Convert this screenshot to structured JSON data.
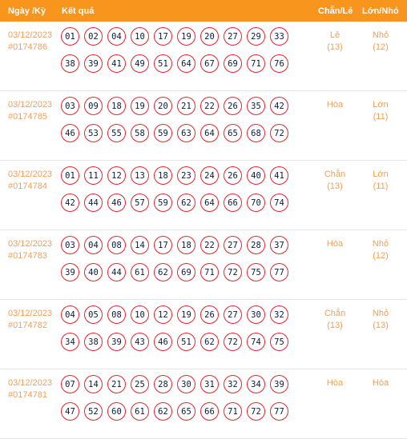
{
  "header": {
    "date": "Ngày /Kỳ",
    "result": "Kết quả",
    "parity": "Chẵn/Lẻ",
    "size": "Lớn/Nhỏ"
  },
  "rows": [
    {
      "date": "03/12/2023",
      "id": "#0174786",
      "numbers": [
        "01",
        "02",
        "04",
        "10",
        "17",
        "19",
        "20",
        "27",
        "29",
        "33",
        "38",
        "39",
        "41",
        "49",
        "51",
        "64",
        "67",
        "69",
        "71",
        "76"
      ],
      "parity": "Lẻ",
      "parity_count": "(13)",
      "size": "Nhỏ",
      "size_count": "(12)"
    },
    {
      "date": "03/12/2023",
      "id": "#0174785",
      "numbers": [
        "03",
        "09",
        "18",
        "19",
        "20",
        "21",
        "22",
        "26",
        "35",
        "42",
        "46",
        "53",
        "55",
        "58",
        "59",
        "63",
        "64",
        "65",
        "68",
        "72"
      ],
      "parity": "Hòa",
      "parity_count": "",
      "size": "Lớn",
      "size_count": "(11)"
    },
    {
      "date": "03/12/2023",
      "id": "#0174784",
      "numbers": [
        "01",
        "11",
        "12",
        "13",
        "18",
        "23",
        "24",
        "26",
        "40",
        "41",
        "42",
        "44",
        "46",
        "57",
        "59",
        "62",
        "64",
        "66",
        "70",
        "74"
      ],
      "parity": "Chẵn",
      "parity_count": "(13)",
      "size": "Lớn",
      "size_count": "(11)"
    },
    {
      "date": "03/12/2023",
      "id": "#0174783",
      "numbers": [
        "03",
        "04",
        "08",
        "14",
        "17",
        "18",
        "22",
        "27",
        "28",
        "37",
        "39",
        "40",
        "44",
        "61",
        "62",
        "69",
        "71",
        "72",
        "75",
        "77"
      ],
      "parity": "Hòa",
      "parity_count": "",
      "size": "Nhỏ",
      "size_count": "(12)"
    },
    {
      "date": "03/12/2023",
      "id": "#0174782",
      "numbers": [
        "04",
        "05",
        "08",
        "10",
        "12",
        "19",
        "26",
        "27",
        "30",
        "32",
        "34",
        "38",
        "39",
        "43",
        "46",
        "51",
        "62",
        "72",
        "74",
        "75"
      ],
      "parity": "Chẵn",
      "parity_count": "(13)",
      "size": "Nhỏ",
      "size_count": "(13)"
    },
    {
      "date": "03/12/2023",
      "id": "#0174781",
      "numbers": [
        "07",
        "14",
        "21",
        "25",
        "28",
        "30",
        "31",
        "32",
        "34",
        "39",
        "47",
        "52",
        "60",
        "61",
        "62",
        "65",
        "66",
        "71",
        "72",
        "77"
      ],
      "parity": "Hòa",
      "parity_count": "",
      "size": "Hòa",
      "size_count": ""
    }
  ],
  "colors": {
    "header_bg": "#f7951d",
    "accent_text": "#f0a05a",
    "ball_border": "#e3262d"
  }
}
